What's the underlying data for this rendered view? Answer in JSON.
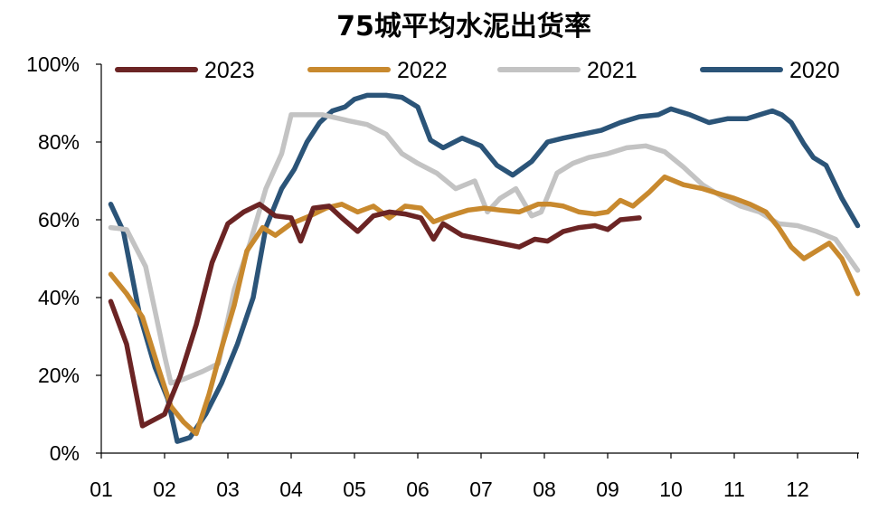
{
  "chart_data": {
    "type": "line",
    "title": "75城平均水泥出货率",
    "xlabel": "",
    "ylabel": "",
    "x_ticks": [
      "01",
      "02",
      "03",
      "04",
      "05",
      "06",
      "07",
      "08",
      "09",
      "10",
      "11",
      "12"
    ],
    "y_ticks": [
      "0%",
      "20%",
      "40%",
      "60%",
      "80%",
      "100%"
    ],
    "ylim": [
      0,
      100
    ],
    "xlim": [
      1,
      12.95
    ],
    "grid": false,
    "legend": {
      "placement": "top",
      "entries": [
        "2023",
        "2022",
        "2021",
        "2020"
      ]
    },
    "series": [
      {
        "name": "2023",
        "color": "#6B2424",
        "x": [
          1.15,
          1.4,
          1.65,
          2.0,
          2.25,
          2.5,
          2.75,
          3.0,
          3.25,
          3.5,
          3.75,
          4.0,
          4.15,
          4.35,
          4.6,
          4.8,
          5.05,
          5.3,
          5.55,
          5.8,
          6.05,
          6.25,
          6.4,
          6.7,
          7.0,
          7.3,
          7.6,
          7.85,
          8.05,
          8.3,
          8.55,
          8.8,
          9.0,
          9.2,
          9.5
        ],
        "y": [
          39,
          28,
          7,
          10,
          20,
          33,
          49,
          59,
          62,
          64,
          61,
          60.5,
          54.5,
          63,
          63.5,
          60.5,
          57,
          61,
          62,
          61.5,
          60.5,
          55,
          59,
          56,
          55,
          54,
          53,
          55,
          54.5,
          57,
          58,
          58.5,
          57.5,
          60,
          60.5
        ]
      },
      {
        "name": "2022",
        "color": "#C8892E",
        "x": [
          1.15,
          1.4,
          1.65,
          1.9,
          2.1,
          2.3,
          2.5,
          2.7,
          2.9,
          3.1,
          3.3,
          3.55,
          3.75,
          4.0,
          4.3,
          4.55,
          4.8,
          5.05,
          5.3,
          5.55,
          5.8,
          6.05,
          6.25,
          6.5,
          6.8,
          7.05,
          7.3,
          7.6,
          7.9,
          8.1,
          8.3,
          8.55,
          8.8,
          9.0,
          9.2,
          9.4,
          9.65,
          9.9,
          10.2,
          10.5,
          10.8,
          11.0,
          11.25,
          11.5,
          11.7,
          11.9,
          12.1,
          12.3,
          12.5,
          12.7,
          12.95
        ],
        "y": [
          46,
          41,
          35,
          22,
          12,
          8,
          5,
          15,
          27,
          38,
          52,
          58,
          56,
          59,
          61,
          63,
          64,
          62,
          63.5,
          60.5,
          63.5,
          63,
          59.5,
          61,
          62.5,
          63,
          62.5,
          62,
          64,
          64,
          63.5,
          62,
          61.5,
          62,
          65,
          63.5,
          67,
          71,
          69,
          68,
          66.5,
          65.5,
          64,
          62,
          58,
          53,
          50,
          52,
          54,
          50,
          41
        ]
      },
      {
        "name": "2021",
        "color": "#C3C3C3",
        "x": [
          1.15,
          1.4,
          1.7,
          2.0,
          2.1,
          2.3,
          2.6,
          2.85,
          3.1,
          3.35,
          3.6,
          3.85,
          4.0,
          4.5,
          4.9,
          5.2,
          5.5,
          5.75,
          6.0,
          6.3,
          6.6,
          6.9,
          7.1,
          7.3,
          7.55,
          7.8,
          7.95,
          8.2,
          8.45,
          8.7,
          9.0,
          9.3,
          9.6,
          9.9,
          10.2,
          10.5,
          10.8,
          11.1,
          11.4,
          11.7,
          12.0,
          12.3,
          12.6,
          12.95
        ],
        "y": [
          58,
          57.5,
          48,
          25,
          18,
          19,
          21,
          23,
          42,
          54,
          68,
          77,
          87,
          87,
          85.5,
          84.5,
          82,
          77,
          74.5,
          72,
          68,
          70,
          62,
          65.5,
          68,
          61,
          62,
          72,
          74.5,
          76,
          77,
          78.5,
          79,
          77.5,
          73.5,
          69,
          66,
          63.5,
          62,
          59,
          58.5,
          57,
          55,
          47
        ]
      },
      {
        "name": "2020",
        "color": "#2B5478",
        "x": [
          1.15,
          1.35,
          1.6,
          1.85,
          2.05,
          2.2,
          2.4,
          2.65,
          2.9,
          3.15,
          3.4,
          3.6,
          3.85,
          4.05,
          4.25,
          4.45,
          4.65,
          4.85,
          5.0,
          5.2,
          5.5,
          5.75,
          6.0,
          6.2,
          6.4,
          6.7,
          7.0,
          7.25,
          7.5,
          7.8,
          8.05,
          8.3,
          8.6,
          8.9,
          9.2,
          9.5,
          9.8,
          10.0,
          10.3,
          10.6,
          10.9,
          11.2,
          11.4,
          11.6,
          11.75,
          11.9,
          12.1,
          12.25,
          12.45,
          12.7,
          12.95
        ],
        "y": [
          64,
          57,
          36,
          22,
          14,
          3,
          4,
          10,
          18,
          28,
          40,
          58,
          68,
          73,
          80,
          85,
          88,
          89,
          91,
          92,
          92,
          91.5,
          89,
          80.5,
          78.5,
          81,
          79,
          74,
          71.5,
          75,
          80,
          81,
          82,
          83,
          85,
          86.5,
          87,
          88.5,
          87,
          85,
          86,
          86,
          87,
          88,
          87,
          85,
          79.5,
          76,
          74,
          65.5,
          58.5
        ]
      }
    ]
  }
}
